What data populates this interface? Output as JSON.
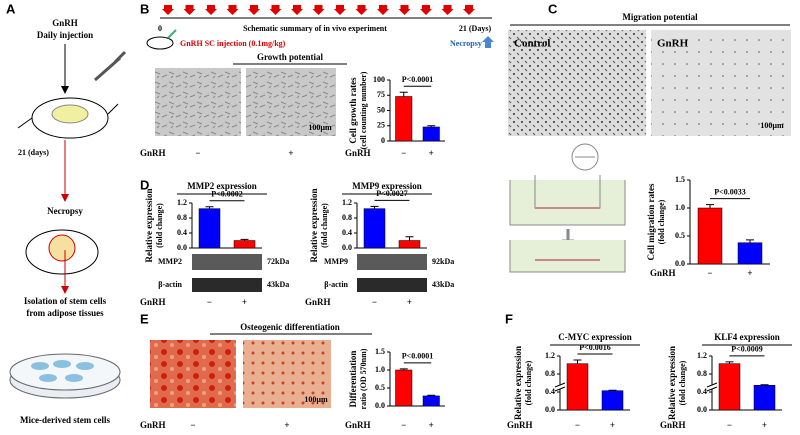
{
  "panels": {
    "A": {
      "label": "A",
      "step1": [
        "GnRH",
        "Daily injection"
      ],
      "days": "21 (days)",
      "step2": "Necropsy",
      "step3": [
        "Isolation of stem cells",
        "from adipose tissues"
      ],
      "step4": "Mice-derived stem cells"
    },
    "B": {
      "label": "B",
      "schematic": "Schematic summary of in vivo experiment",
      "start": "0",
      "end": "21 (Days)",
      "injection": "GnRH SC injection (0.1mg/kg)",
      "necropsy": "Necropsy",
      "title": "Growth potential",
      "scale": "100µm",
      "group": "GnRH",
      "minus": "−",
      "plus": "+"
    },
    "C": {
      "label": "C",
      "title": "Migration potential",
      "control": "Control",
      "treated": "GnRH",
      "scale": "100µm"
    },
    "D": {
      "label": "D",
      "blot1": "MMP2",
      "blot1_kda": "72kDa",
      "blot2": "MMP9",
      "blot2_kda": "92kDa",
      "actin": "β-actin",
      "actin_kda": "43kDa"
    },
    "E": {
      "label": "E",
      "title": "Osteogenic differentiation",
      "scale": "100µm",
      "group": "GnRH",
      "minus": "−",
      "plus": "+"
    },
    "F": {
      "label": "F"
    }
  },
  "chart_data": [
    {
      "type": "bar",
      "y_label": [
        "Cell growth rates",
        "(cell counting number)"
      ],
      "x_label": "GnRH",
      "categories": [
        "−",
        "+"
      ],
      "values": [
        73,
        23
      ],
      "errors": [
        7,
        2
      ],
      "colors": [
        "#ff0000",
        "#0000ff"
      ],
      "ylim": [
        0,
        100
      ],
      "yticks": [
        0,
        25,
        50,
        75,
        100
      ],
      "annotation": "P<0.0001"
    },
    {
      "type": "bar",
      "y_label": [
        "Cell migration rates",
        "(fold change)"
      ],
      "x_label": "GnRH",
      "categories": [
        "−",
        "+"
      ],
      "values": [
        1.0,
        0.38
      ],
      "errors": [
        0.06,
        0.05
      ],
      "colors": [
        "#ff0000",
        "#0000ff"
      ],
      "ylim": [
        0,
        1.5
      ],
      "yticks": [
        {
          "value": 0,
          "label": "0.0"
        },
        0.5,
        {
          "value": 1,
          "label": "1.0"
        },
        1.5
      ],
      "annotation": "P<0.0033"
    },
    {
      "type": "bar",
      "title": "MMP2 expression",
      "y_label": [
        "Relative expression",
        "(fold change)"
      ],
      "x_label": "GnRH",
      "categories": [
        "−",
        "+"
      ],
      "values": [
        1.05,
        0.2
      ],
      "errors": [
        0.05,
        0.03
      ],
      "colors": [
        "#0000ff",
        "#ff0000"
      ],
      "ylim": [
        0,
        1.2
      ],
      "yticks": [
        {
          "value": 0,
          "label": "0.0"
        },
        0.4,
        0.8,
        1.2
      ],
      "annotation": "P<0.0002"
    },
    {
      "type": "bar",
      "title": "MMP9 expression",
      "y_label": [
        "Relative expression",
        "(fold change)"
      ],
      "x_label": "GnRH",
      "categories": [
        "−",
        "+"
      ],
      "values": [
        1.05,
        0.2
      ],
      "errors": [
        0.06,
        0.1
      ],
      "colors": [
        "#0000ff",
        "#ff0000"
      ],
      "ylim": [
        0,
        1.2
      ],
      "yticks": [
        {
          "value": 0,
          "label": "0.0"
        },
        0.4,
        0.8,
        1.2
      ],
      "annotation": "P<0.0027"
    },
    {
      "type": "bar",
      "y_label": [
        "Differentiation",
        "ratio (OD 570nm)"
      ],
      "x_label": "GnRH",
      "categories": [
        "−",
        "+"
      ],
      "values": [
        1.0,
        0.28
      ],
      "errors": [
        0.03,
        0.02
      ],
      "colors": [
        "#ff0000",
        "#0000ff"
      ],
      "ylim": [
        0,
        1.5
      ],
      "yticks": [
        {
          "value": 0,
          "label": "0.0"
        },
        0.5,
        {
          "value": 1,
          "label": "1.0"
        },
        1.5
      ],
      "annotation": "P<0.0001"
    },
    {
      "type": "bar",
      "title": "C-MYC expression",
      "y_label": [
        "Relative expression",
        "(fold change)"
      ],
      "x_label": "GnRH",
      "categories": [
        "−",
        "+"
      ],
      "values": [
        1.03,
        0.43
      ],
      "errors": [
        0.08,
        0.01
      ],
      "colors": [
        "#ff0000",
        "#0000ff"
      ],
      "ylim": [
        0,
        1.2
      ],
      "yticks": [
        {
          "value": 0,
          "label": "0.0"
        },
        0.4,
        0.8,
        1.2
      ],
      "axis_break": true,
      "annotation": "P<0.0016"
    },
    {
      "type": "bar",
      "title": "KLF4 expression",
      "y_label": [
        "Relative expression",
        "(fold change)"
      ],
      "x_label": "GnRH",
      "categories": [
        "−",
        "+"
      ],
      "values": [
        1.03,
        0.55
      ],
      "errors": [
        0.04,
        0.01
      ],
      "colors": [
        "#ff0000",
        "#0000ff"
      ],
      "ylim": [
        0,
        1.2
      ],
      "yticks": [
        {
          "value": 0,
          "label": "0.0"
        },
        0.4,
        0.8,
        1.2
      ],
      "axis_break": true,
      "annotation": "P<0.0009"
    }
  ]
}
